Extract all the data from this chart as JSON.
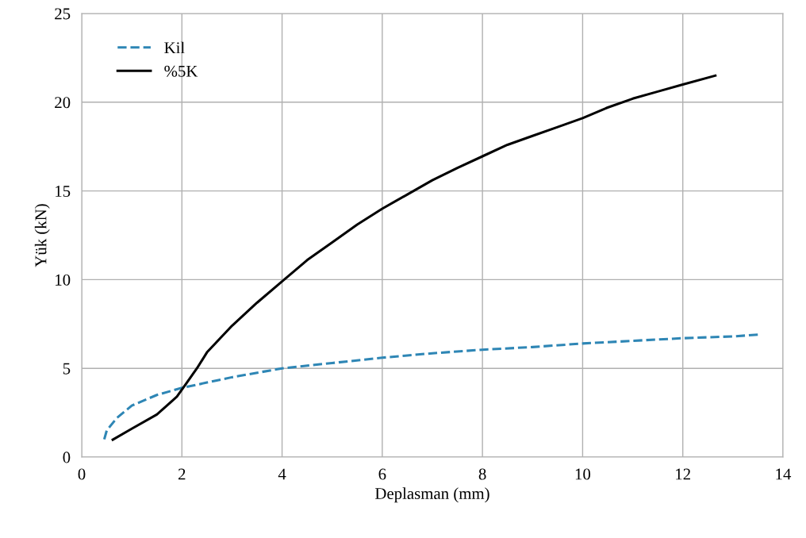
{
  "chart_data": {
    "type": "line",
    "xlabel": "Deplasman (mm)",
    "ylabel": "Yük (kN)",
    "xlim": [
      0,
      14
    ],
    "ylim": [
      0,
      25
    ],
    "xticks": [
      0,
      2,
      4,
      6,
      8,
      10,
      12,
      14
    ],
    "yticks": [
      0,
      5,
      10,
      15,
      20,
      25
    ],
    "grid": true,
    "legend": "top left",
    "marker": "none",
    "series": [
      {
        "name": "Kil",
        "color": "#2e86b5",
        "line_style": "dashed",
        "x": [
          0.45,
          0.5,
          0.7,
          1,
          1.5,
          2,
          2.5,
          3,
          4,
          5,
          6,
          7,
          8,
          9,
          10,
          11,
          12,
          13,
          13.5
        ],
        "values": [
          1.0,
          1.5,
          2.2,
          2.9,
          3.5,
          3.9,
          4.2,
          4.5,
          5.0,
          5.3,
          5.6,
          5.85,
          6.05,
          6.2,
          6.4,
          6.55,
          6.7,
          6.8,
          6.9
        ]
      },
      {
        "name": "%5K",
        "color": "#000000",
        "line_style": "solid",
        "x": [
          0.62,
          1,
          1.5,
          1.9,
          2.1,
          2.3,
          2.5,
          3,
          3.5,
          4,
          4.5,
          5,
          5.5,
          6,
          6.5,
          7,
          7.5,
          8,
          8.5,
          9,
          9.5,
          10,
          10.5,
          11,
          11.5,
          12,
          12.65
        ],
        "values": [
          0.98,
          1.6,
          2.4,
          3.4,
          4.2,
          5.0,
          5.9,
          7.4,
          8.7,
          9.9,
          11.1,
          12.1,
          13.1,
          14.0,
          14.8,
          15.6,
          16.3,
          16.95,
          17.6,
          18.1,
          18.6,
          19.1,
          19.7,
          20.2,
          20.6,
          21.0,
          21.5
        ]
      }
    ]
  }
}
